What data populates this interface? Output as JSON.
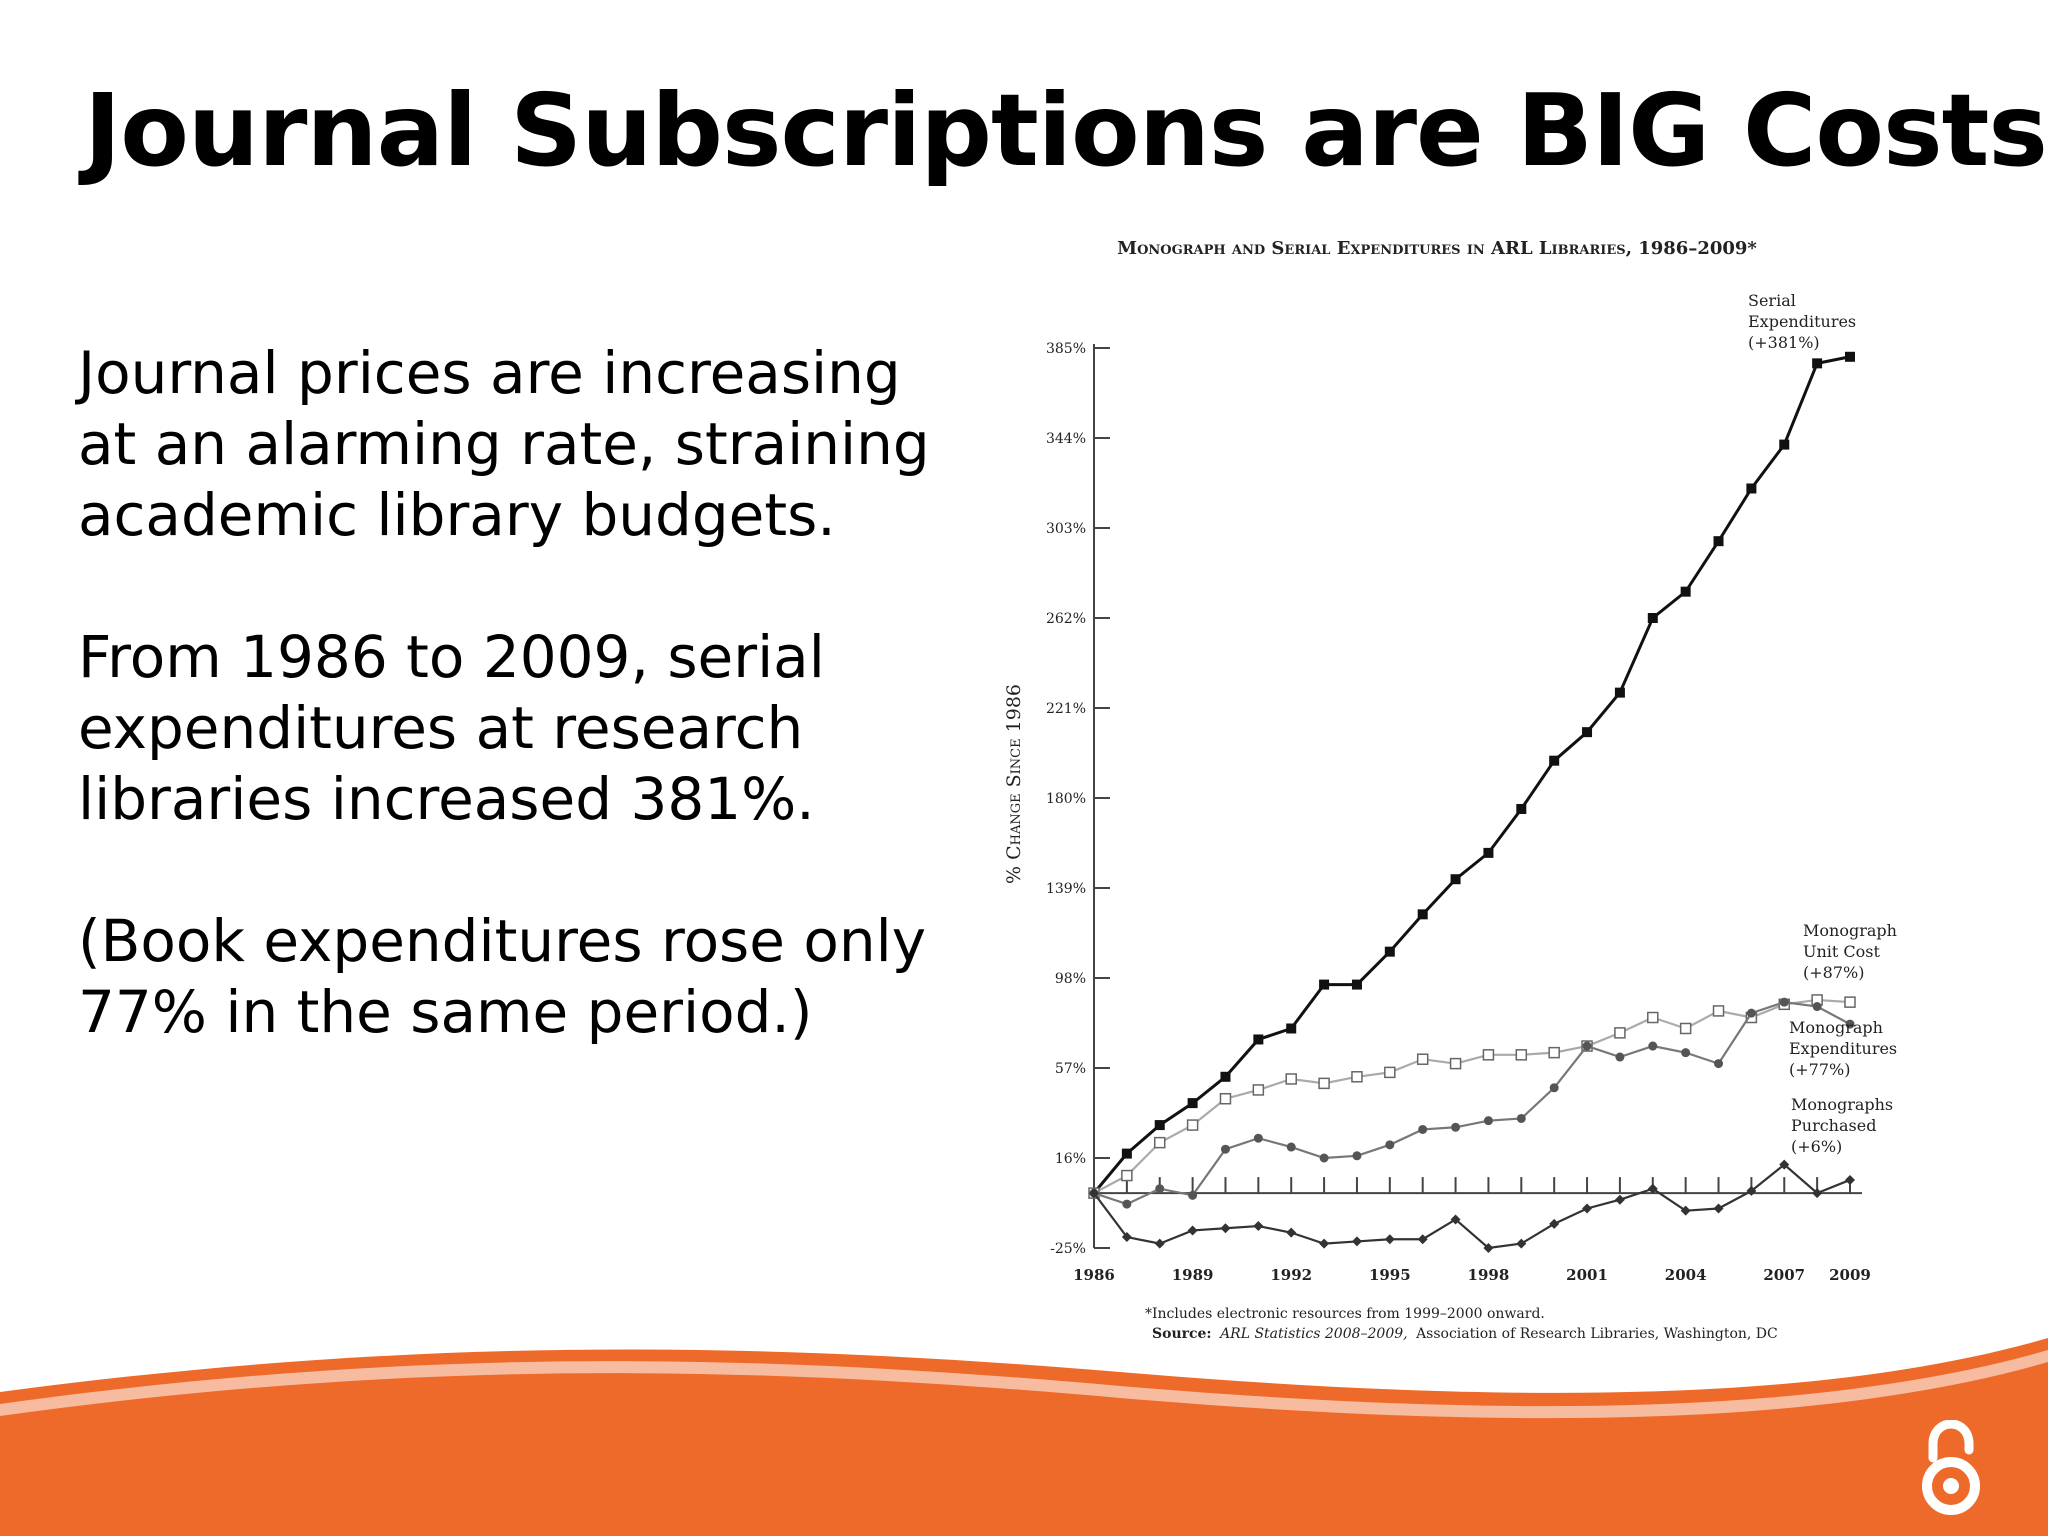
{
  "slide": {
    "title": "Journal Subscriptions are BIG Costs",
    "paragraphs": [
      "Journal prices are increasing at an alarming rate, straining academic library budgets.",
      "From 1986 to 2009, serial expenditures at research libraries increased 381%.",
      "(Book expenditures rose only 77% in the same period.)"
    ],
    "accent_color": "#ee6a2a",
    "logo_icon": "open-access-icon"
  },
  "chart_data": {
    "type": "line",
    "title": "Monograph and Serial Expenditures in ARL Libraries, 1986–2009*",
    "ylabel": "% Change Since 1986",
    "xlabel": "",
    "ylim": [
      -25,
      385
    ],
    "yticks": [
      "-25%",
      "16%",
      "57%",
      "98%",
      "139%",
      "180%",
      "221%",
      "262%",
      "303%",
      "344%",
      "385%"
    ],
    "xticks": [
      "1986",
      "1989",
      "1992",
      "1995",
      "1998",
      "2001",
      "2004",
      "2007",
      "2009"
    ],
    "x": [
      1986,
      1987,
      1988,
      1989,
      1990,
      1991,
      1992,
      1993,
      1994,
      1995,
      1996,
      1997,
      1998,
      1999,
      2000,
      2001,
      2002,
      2003,
      2004,
      2005,
      2006,
      2007,
      2008,
      2009
    ],
    "grid": false,
    "series": [
      {
        "name": "Serial Expenditures (+381%)",
        "label_lines": [
          "Serial",
          "Expenditures",
          "(+381%)"
        ],
        "marker": "filled-square",
        "color": "#111111",
        "values": [
          0,
          18,
          31,
          41,
          53,
          70,
          75,
          95,
          95,
          110,
          127,
          143,
          155,
          175,
          197,
          210,
          228,
          262,
          274,
          297,
          321,
          341,
          378,
          381
        ]
      },
      {
        "name": "Monograph Unit Cost (+87%)",
        "label_lines": [
          "Monograph",
          "Unit Cost",
          "(+87%)"
        ],
        "marker": "open-square",
        "color": "#aaaaaa",
        "values": [
          0,
          8,
          23,
          31,
          43,
          47,
          52,
          50,
          53,
          55,
          61,
          59,
          63,
          63,
          64,
          67,
          73,
          80,
          75,
          83,
          80,
          86,
          88,
          87
        ]
      },
      {
        "name": "Monograph Expenditures (+77%)",
        "label_lines": [
          "Monograph",
          "Expenditures",
          "(+77%)"
        ],
        "marker": "filled-circle",
        "color": "#777777",
        "values": [
          0,
          -5,
          2,
          -1,
          20,
          25,
          21,
          16,
          17,
          22,
          29,
          30,
          33,
          34,
          48,
          67,
          62,
          67,
          64,
          59,
          82,
          87,
          85,
          77
        ]
      },
      {
        "name": "Monographs Purchased (+6%)",
        "label_lines": [
          "Monographs",
          "Purchased",
          "(+6%)"
        ],
        "marker": "filled-diamond",
        "color": "#333333",
        "values": [
          0,
          -20,
          -23,
          -17,
          -16,
          -15,
          -18,
          -23,
          -22,
          -21,
          -21,
          -12,
          -25,
          -23,
          -14,
          -7,
          -3,
          2,
          -8,
          -7,
          1,
          13,
          0,
          6
        ]
      }
    ],
    "footnote": "*Includes electronic resources from 1999–2000 onward.",
    "source_label": "Source:",
    "source_citation": "ARL Statistics 2008–2009,",
    "source_rest": "Association of Research Libraries, Washington, DC"
  }
}
